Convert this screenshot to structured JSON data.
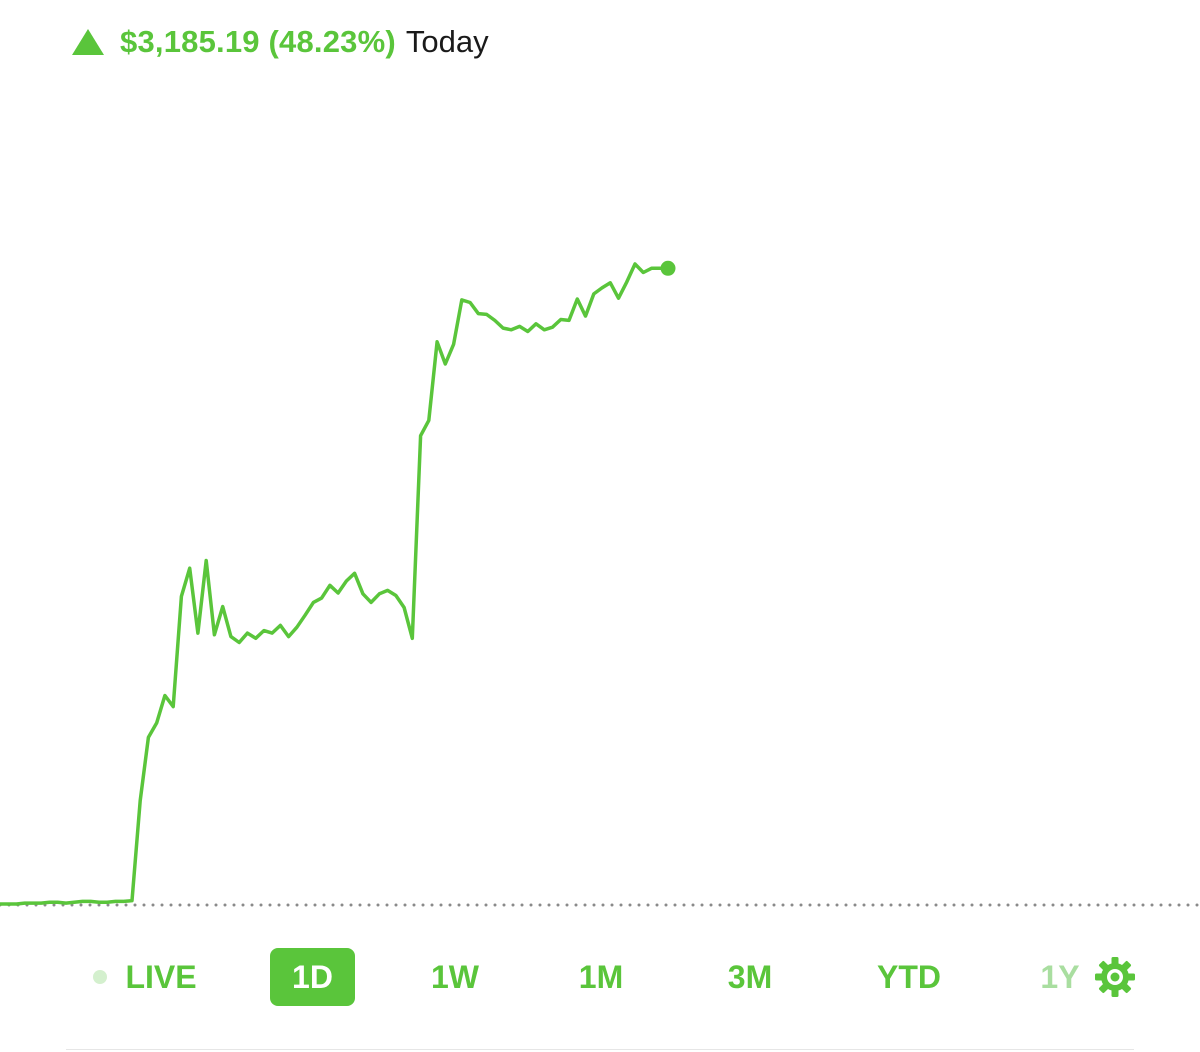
{
  "header": {
    "change_text": "$3,185.19 (48.23%)",
    "period_text": "Today",
    "up_icon": "triangle-up-icon"
  },
  "colors": {
    "accent": "#5ac53b",
    "accent_muted": "#a9dea0",
    "live_dot": "#d4f0ce",
    "baseline_dots": "#8a8a8a",
    "text": "#1a1a1a"
  },
  "range_selector": {
    "items": [
      {
        "label": "LIVE",
        "state": "normal",
        "icon": "live-dot-icon"
      },
      {
        "label": "1D",
        "state": "active"
      },
      {
        "label": "1W",
        "state": "normal"
      },
      {
        "label": "1M",
        "state": "normal"
      },
      {
        "label": "3M",
        "state": "normal"
      },
      {
        "label": "YTD",
        "state": "normal"
      },
      {
        "label": "1Y",
        "state": "muted",
        "icon": "gear-icon"
      }
    ]
  },
  "chart_data": {
    "type": "line",
    "grid": false,
    "reference_line": "dotted baseline (previous close)",
    "series": [
      {
        "values": [
          0.0,
          0.0,
          0.0,
          0.1,
          0.1,
          0.1,
          0.2,
          0.2,
          0.1,
          0.2,
          0.3,
          0.3,
          0.2,
          0.2,
          0.3,
          0.3,
          0.4,
          12.1,
          19.5,
          21.2,
          24.4,
          23.1,
          36.0,
          39.3,
          31.7,
          40.2,
          31.5,
          34.8,
          31.3,
          30.6,
          31.7,
          31.1,
          32.0,
          31.7,
          32.6,
          31.3,
          32.4,
          33.8,
          35.3,
          35.8,
          37.3,
          36.4,
          37.8,
          38.7,
          36.3,
          35.3,
          36.3,
          36.7,
          36.1,
          34.7,
          31.1,
          54.8,
          56.6,
          65.8,
          63.2,
          65.5,
          70.7,
          70.4,
          69.1,
          69.0,
          68.3,
          67.4,
          67.2,
          67.6,
          67.0,
          67.9,
          67.2,
          67.5,
          68.4,
          68.3,
          70.8,
          68.8,
          71.4,
          72.1,
          72.7,
          70.9,
          72.8,
          74.9,
          73.9,
          74.4,
          74.4,
          74.4
        ]
      }
    ]
  }
}
